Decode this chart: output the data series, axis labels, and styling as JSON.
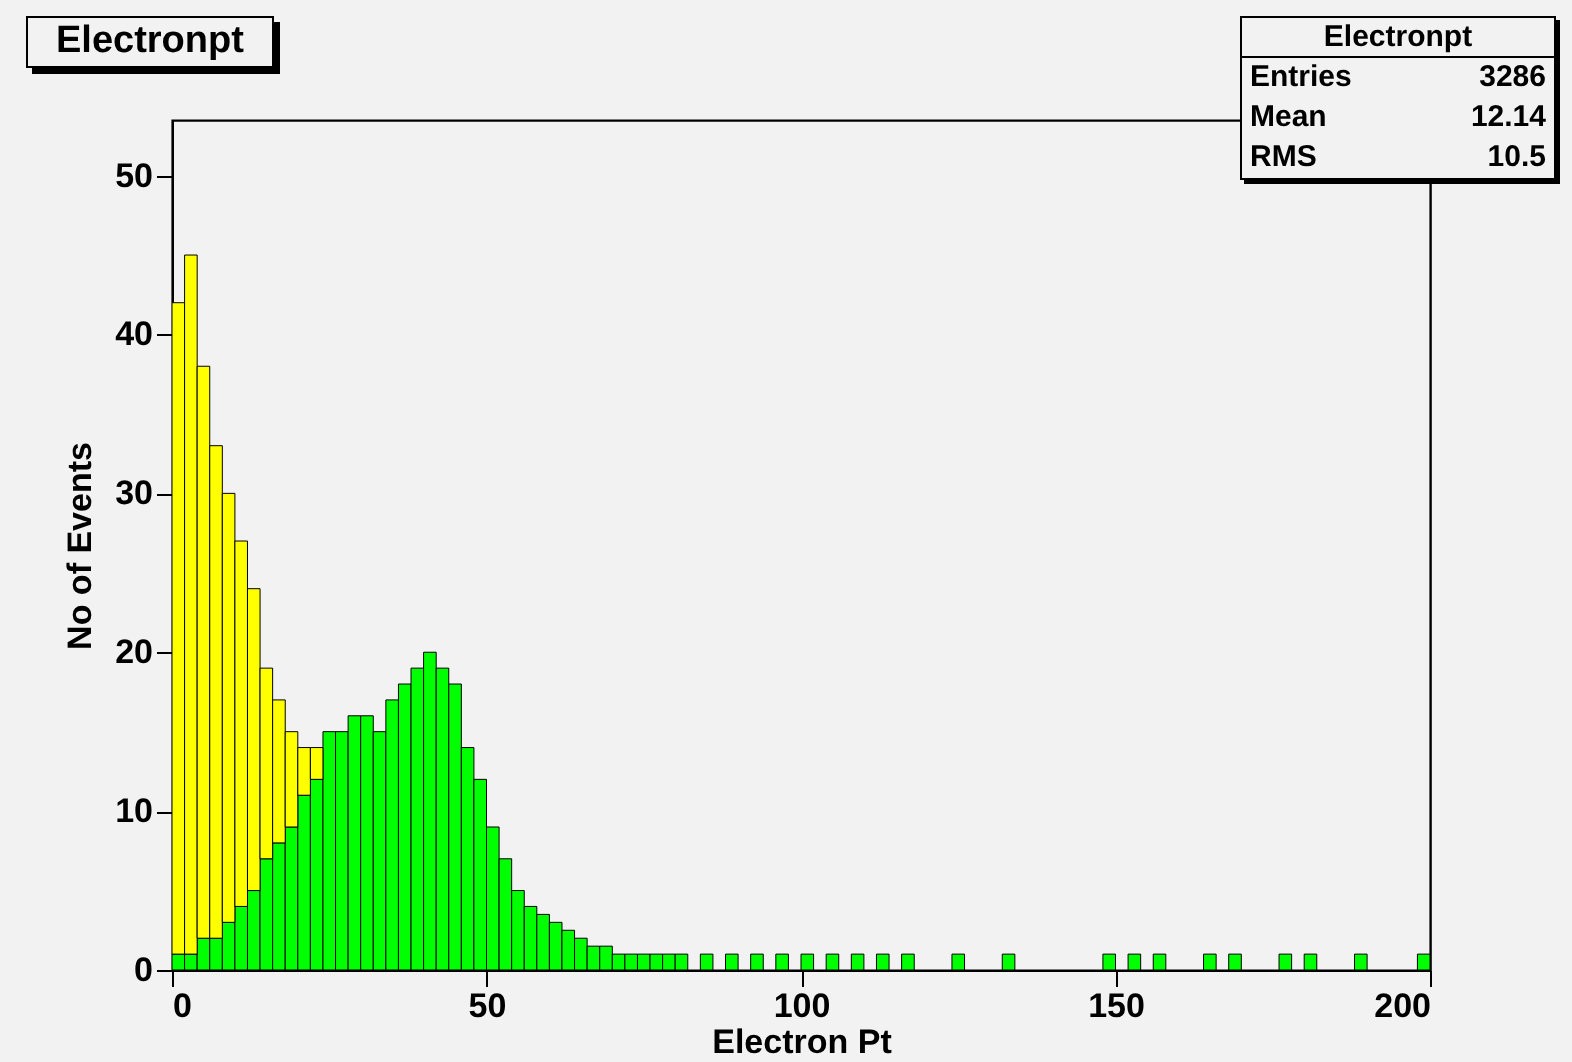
{
  "chart_data": {
    "type": "bar",
    "stacked": true,
    "title": "Electronpt",
    "xlabel": "Electron Pt",
    "ylabel": "No of Events",
    "annotations": [
      "Electronpt",
      "Entries",
      "3286",
      "Mean",
      "12.14",
      "RMS",
      "10.5"
    ],
    "x": [
      1,
      3,
      5,
      7,
      9,
      11,
      13,
      15,
      17,
      19,
      21,
      23,
      25,
      27,
      29,
      31,
      33,
      35,
      37,
      39,
      41,
      43,
      45,
      47,
      49,
      51,
      53,
      55,
      57,
      59,
      61,
      63,
      65,
      67,
      69,
      71,
      73,
      75,
      77,
      79,
      81,
      83,
      85,
      87,
      89,
      91,
      93,
      95,
      97,
      99,
      101,
      103,
      105,
      107,
      109,
      111,
      113,
      115,
      117,
      119,
      121,
      123,
      125,
      127,
      129,
      131,
      133,
      135,
      137,
      139,
      141,
      143,
      145,
      147,
      149,
      151,
      153,
      155,
      157,
      159,
      161,
      163,
      165,
      167,
      169,
      171,
      173,
      175,
      177,
      179,
      181,
      183,
      185,
      187,
      189,
      191,
      193,
      195,
      197,
      199
    ],
    "series": [
      {
        "color": "#00ff00",
        "values": [
          1,
          1,
          2,
          2,
          3,
          4,
          5,
          7,
          8,
          9,
          11,
          12,
          15,
          15,
          16,
          16,
          15,
          17,
          18,
          19,
          20,
          19,
          18,
          14,
          12,
          9,
          7,
          5,
          4,
          3.5,
          3,
          2.5,
          2,
          1.5,
          1.5,
          1,
          1,
          1,
          1,
          1,
          1,
          null,
          1,
          null,
          1,
          null,
          1,
          null,
          1,
          null,
          1,
          null,
          1,
          null,
          1,
          null,
          1,
          null,
          1,
          null,
          null,
          null,
          1,
          null,
          null,
          null,
          1,
          null,
          null,
          null,
          null,
          null,
          null,
          null,
          1,
          null,
          1,
          null,
          1,
          null,
          null,
          null,
          1,
          null,
          1,
          null,
          null,
          null,
          1,
          null,
          1,
          null,
          null,
          null,
          1,
          null,
          null,
          null,
          null,
          1
        ]
      },
      {
        "color": "#ffff00",
        "values": [
          41,
          44,
          36,
          31,
          27,
          23,
          19,
          12,
          9,
          6,
          3,
          2,
          null,
          null,
          null,
          null,
          null,
          null,
          null,
          null,
          null,
          null,
          null,
          null,
          null,
          null,
          null,
          null,
          null,
          null,
          null,
          null,
          null,
          null,
          null,
          null,
          null,
          null,
          null,
          null,
          null,
          null,
          null,
          null,
          null,
          null,
          null,
          null,
          null,
          null,
          null,
          null,
          null,
          null,
          null,
          null,
          null,
          null,
          null,
          null,
          null,
          null,
          null,
          null,
          null,
          null,
          null,
          null,
          null,
          null,
          null,
          null,
          null,
          null,
          null,
          null,
          null,
          null,
          null,
          null,
          null,
          null,
          null,
          null,
          null,
          null,
          null,
          null,
          null,
          null,
          null,
          null,
          null,
          null,
          null,
          null,
          null,
          null,
          null,
          null
        ]
      }
    ],
    "xlim": [
      0,
      200
    ],
    "xticks": [
      0,
      50,
      100,
      150,
      200
    ],
    "ylim": [
      0,
      53.5
    ],
    "yticks": [
      0,
      10,
      20,
      30,
      40,
      50
    ],
    "grid": false
  }
}
